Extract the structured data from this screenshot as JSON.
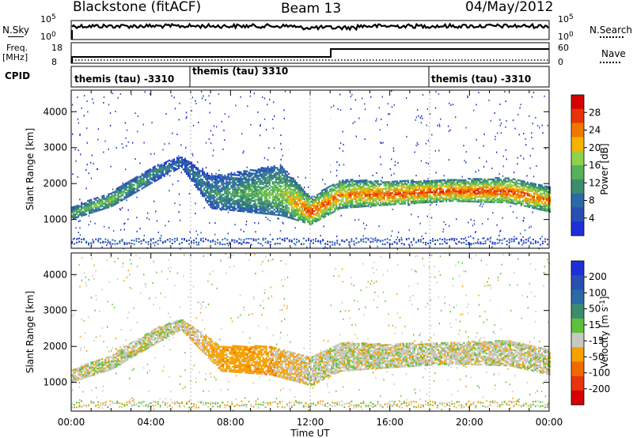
{
  "header": {
    "radar": "Blackstone (fitACF)",
    "beam": "Beam 13",
    "date": "04/May/2012"
  },
  "top_panels": {
    "nsky_label": "N.Sky",
    "nsearch_label": "N.Search",
    "log_top": "10^5",
    "log_bottom": "10^0",
    "freq_label": "Freq.",
    "freq_unit": "[MHz]",
    "freq_ticks": [
      "18",
      "8"
    ],
    "nave_label": "Nave",
    "nave_ticks": [
      "60",
      "0"
    ],
    "cpid_label": "CPID",
    "cpid_segments": [
      "themis (tau) -3310",
      "themis (tau) 3310",
      "themis (tau) -3310"
    ]
  },
  "colors": {
    "power": [
      "#1e2fd8",
      "#2a4fb3",
      "#2b6aa6",
      "#3c8c6e",
      "#57b15a",
      "#8ed24c",
      "#f5b300",
      "#f07800",
      "#e8340b",
      "#d60000"
    ],
    "velocity": [
      "#1e2fd8",
      "#2a4fb3",
      "#2b6aa6",
      "#3c8c6e",
      "#5fc03a",
      "#c8c8c0",
      "#f5a100",
      "#f06a00",
      "#e8340b",
      "#d60000"
    ]
  },
  "chart_data": [
    {
      "type": "heatmap",
      "panel": "power",
      "ylabel": "Slant Range [km]",
      "yticks": [
        "1000",
        "2000",
        "3000",
        "4000"
      ],
      "ylim": [
        200,
        4600
      ],
      "colorbar_label": "Power [dB]",
      "colorbar_ticks": [
        "4",
        "8",
        "12",
        "16",
        "20",
        "24",
        "28"
      ],
      "echo_bands": [
        {
          "t": 0.0,
          "lo": 1000,
          "hi": 1350,
          "level": 4
        },
        {
          "t": 2.0,
          "lo": 1350,
          "hi": 1750,
          "level": 5
        },
        {
          "t": 4.0,
          "lo": 2000,
          "hi": 2450,
          "level": 3
        },
        {
          "t": 5.5,
          "lo": 2450,
          "hi": 2750,
          "level": 2
        },
        {
          "t": 7.0,
          "lo": 1300,
          "hi": 2200,
          "level": 3
        },
        {
          "t": 10.5,
          "lo": 1100,
          "hi": 2500,
          "level": 5
        },
        {
          "t": 12.0,
          "lo": 850,
          "hi": 1600,
          "level": 8
        },
        {
          "t": 13.5,
          "lo": 1300,
          "hi": 2100,
          "level": 7
        },
        {
          "t": 16.0,
          "lo": 1400,
          "hi": 2050,
          "level": 8
        },
        {
          "t": 19.0,
          "lo": 1500,
          "hi": 2100,
          "level": 8
        },
        {
          "t": 22.0,
          "lo": 1450,
          "hi": 2150,
          "level": 8
        },
        {
          "t": 24.0,
          "lo": 1200,
          "hi": 1900,
          "level": 7
        }
      ]
    },
    {
      "type": "heatmap",
      "panel": "velocity",
      "ylabel": "Slant Range [km]",
      "yticks": [
        "1000",
        "2000",
        "3000",
        "4000"
      ],
      "ylim": [
        200,
        4600
      ],
      "colorbar_label": "Velocity [m s^-1]",
      "colorbar_ticks": [
        "200",
        "100",
        "50",
        "15",
        "-15",
        "-50",
        "-100",
        "-200"
      ],
      "xlabel": "Time UT",
      "xticks": [
        "00:00",
        "04:00",
        "08:00",
        "12:00",
        "16:00",
        "20:00",
        "00:00"
      ],
      "xlim": [
        0,
        24
      ],
      "echo_bands": [
        {
          "t": 0.0,
          "lo": 1000,
          "hi": 1350,
          "level": 5
        },
        {
          "t": 2.0,
          "lo": 1350,
          "hi": 1750,
          "level": 5
        },
        {
          "t": 4.0,
          "lo": 2000,
          "hi": 2450,
          "level": 5
        },
        {
          "t": 5.5,
          "lo": 2450,
          "hi": 2750,
          "level": 5
        },
        {
          "t": 7.5,
          "lo": 1300,
          "hi": 2000,
          "level": 6
        },
        {
          "t": 10.0,
          "lo": 1200,
          "hi": 2000,
          "level": 6
        },
        {
          "t": 12.0,
          "lo": 900,
          "hi": 1700,
          "level": 5
        },
        {
          "t": 13.5,
          "lo": 1300,
          "hi": 2100,
          "level": 5
        },
        {
          "t": 16.0,
          "lo": 1400,
          "hi": 2050,
          "level": 5
        },
        {
          "t": 19.0,
          "lo": 1500,
          "hi": 2100,
          "level": 5
        },
        {
          "t": 22.0,
          "lo": 1450,
          "hi": 2150,
          "level": 5
        },
        {
          "t": 24.0,
          "lo": 1200,
          "hi": 1900,
          "level": 5
        }
      ]
    }
  ]
}
